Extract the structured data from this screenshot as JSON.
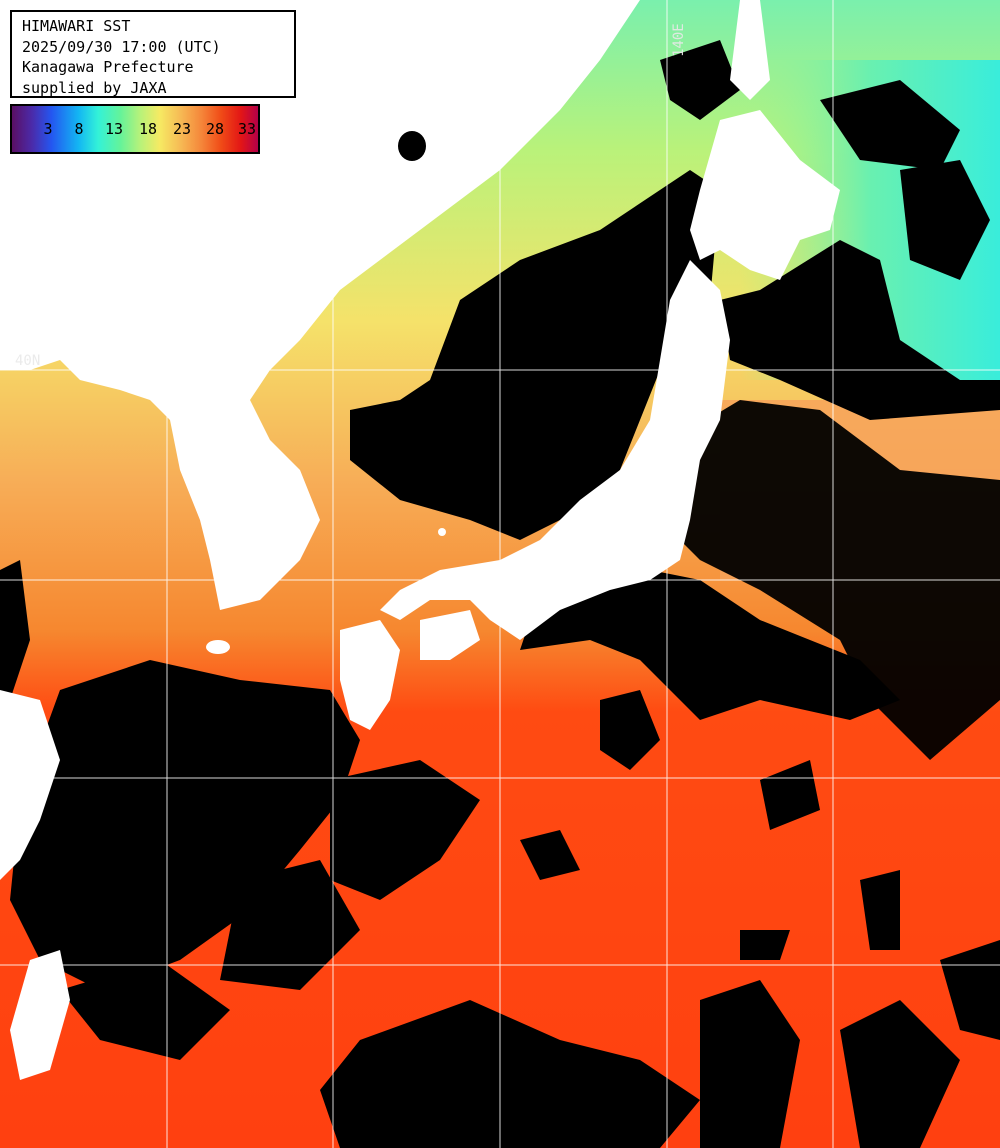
{
  "header": {
    "title": "HIMAWARI SST",
    "datetime": "2025/09/30 17:00 (UTC)",
    "region": "Kanagawa Prefecture",
    "credit": "supplied by JAXA"
  },
  "legend": {
    "ticks": [
      "3",
      "8",
      "13",
      "18",
      "23",
      "28",
      "33"
    ]
  },
  "grid_labels": {
    "latitude": "40N",
    "longitude": "140E"
  },
  "colors": {
    "land": "#ffffff",
    "cloud_no_data": "#000000",
    "warm_sea": "#ff4b12",
    "mid_sea": "#f6b05b",
    "cool_sea": "#a6f28d",
    "cold_sea": "#54f2c2",
    "grid": "#ffffff"
  }
}
